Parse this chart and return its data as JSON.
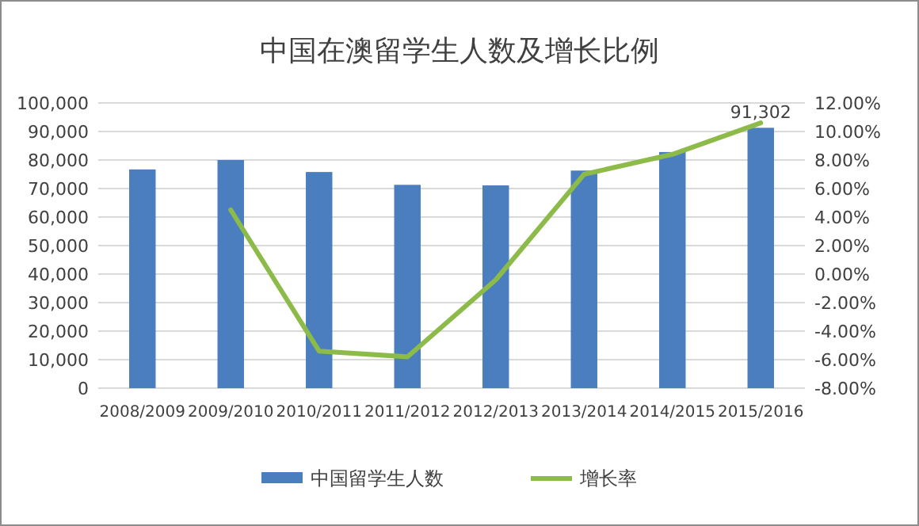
{
  "chart_data": {
    "type": "bar",
    "title": "中国在澳留学生人数及增长比例",
    "categories": [
      "2008/2009",
      "2009/2010",
      "2010/2011",
      "2011/2012",
      "2012/2013",
      "2013/2014",
      "2014/2015",
      "2015/2016"
    ],
    "series": [
      {
        "name": "中国留学生人数",
        "color": "#4a7ebf",
        "values": [
          76700,
          80000,
          75800,
          71300,
          71100,
          76300,
          82800,
          91302
        ],
        "value_labels": [
          null,
          null,
          null,
          null,
          null,
          null,
          null,
          "91,302"
        ]
      },
      {
        "name": "增长率",
        "type": "line",
        "axis": "y2",
        "color": "#8dbb4a",
        "values": [
          null,
          4.5,
          -5.4,
          -5.8,
          -0.4,
          7.0,
          8.4,
          10.6
        ]
      }
    ],
    "ylim": [
      0,
      100000
    ],
    "yticks": [
      {
        "value": 0,
        "label": "0"
      },
      {
        "value": 10000,
        "label": "10,000"
      },
      {
        "value": 20000,
        "label": "20,000"
      },
      {
        "value": 30000,
        "label": "30,000"
      },
      {
        "value": 40000,
        "label": "40,000"
      },
      {
        "value": 50000,
        "label": "50,000"
      },
      {
        "value": 60000,
        "label": "60,000"
      },
      {
        "value": 70000,
        "label": "70,000"
      },
      {
        "value": 80000,
        "label": "80,000"
      },
      {
        "value": 90000,
        "label": "90,000"
      },
      {
        "value": 100000,
        "label": "100,000"
      }
    ],
    "y2lim": [
      -8,
      12
    ],
    "y2ticks": [
      {
        "value": -8,
        "label": "-8.00%"
      },
      {
        "value": -6,
        "label": "-6.00%"
      },
      {
        "value": -4,
        "label": "-4.00%"
      },
      {
        "value": -2,
        "label": "-2.00%"
      },
      {
        "value": 0,
        "label": "0.00%"
      },
      {
        "value": 2,
        "label": "2.00%"
      },
      {
        "value": 4,
        "label": "4.00%"
      },
      {
        "value": 6,
        "label": "6.00%"
      },
      {
        "value": 8,
        "label": "8.00%"
      },
      {
        "value": 10,
        "label": "10.00%"
      },
      {
        "value": 12,
        "label": "12.00%"
      }
    ],
    "grid": "y",
    "legend": "bottom",
    "marker": "none",
    "line_style": "solid"
  }
}
